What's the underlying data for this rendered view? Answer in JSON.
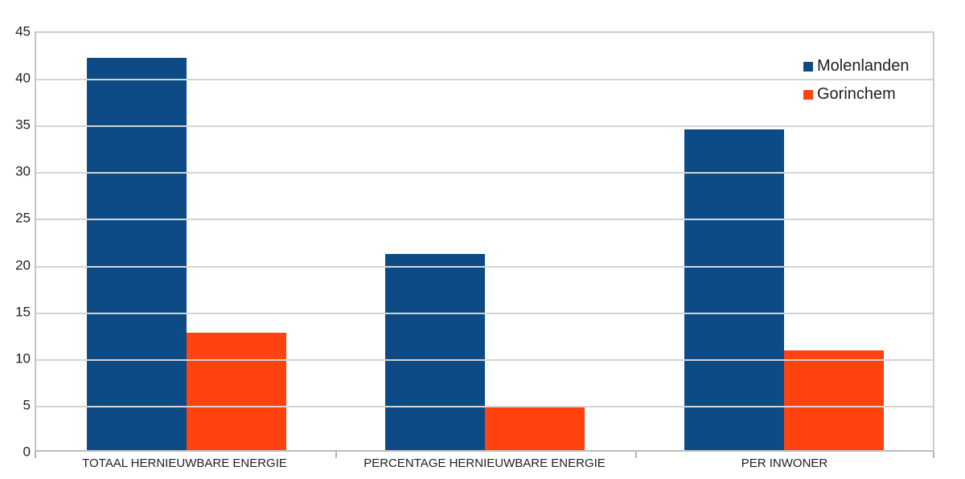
{
  "chart_data": {
    "type": "bar",
    "title": "",
    "xlabel": "",
    "ylabel": "",
    "categories": [
      "TOTAAL HERNIEUWBARE ENERGIE",
      "PERCENTAGE HERNIEUWBARE ENERGIE",
      "PER INWONER"
    ],
    "series": [
      {
        "name": "Molenlanden",
        "color": "#0c4b85",
        "values": [
          42,
          21,
          34.3
        ]
      },
      {
        "name": "Gorinchem",
        "color": "#ff420e",
        "values": [
          12.6,
          4.7,
          10.7
        ]
      }
    ],
    "ylim": [
      0,
      45
    ],
    "ytick_step": 5,
    "yticks": [
      "45",
      "40",
      "35",
      "30",
      "25",
      "20",
      "15",
      "10",
      "5",
      "0"
    ],
    "grid": true,
    "gridline_color": "#d4d4d4",
    "legend_position": "top-right",
    "background_color": "#ffffff"
  }
}
